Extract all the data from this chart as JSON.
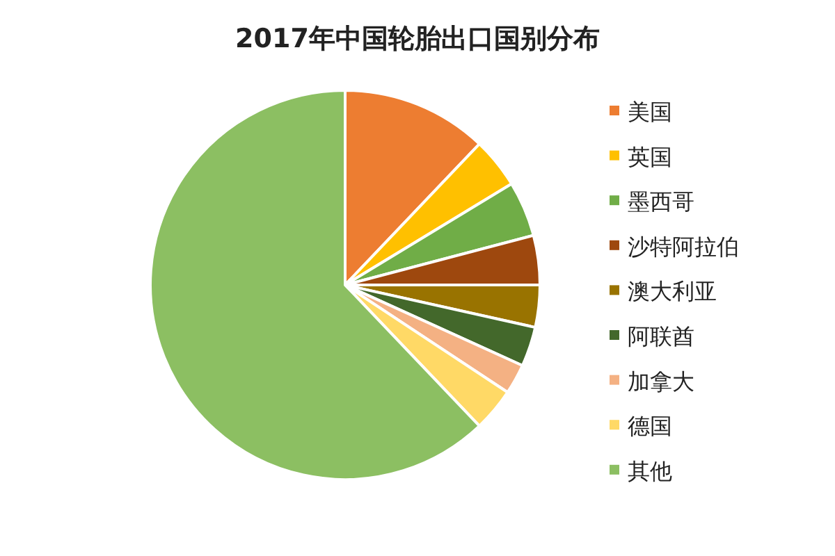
{
  "chart_data": {
    "type": "pie",
    "title": "2017年中国轮胎出口国别分布",
    "categories": [
      "美国",
      "英国",
      "墨西哥",
      "沙特阿拉伯",
      "澳大利亚",
      "阿联酋",
      "加拿大",
      "德国",
      "其他"
    ],
    "values": [
      12.1,
      4.2,
      4.6,
      4.1,
      3.5,
      3.3,
      2.5,
      3.6,
      62.1
    ],
    "colors": [
      "#ed7d31",
      "#ffc000",
      "#70ad47",
      "#9e480e",
      "#997300",
      "#43682b",
      "#f4b183",
      "#ffd966",
      "#8cbf62"
    ],
    "legend": "right"
  }
}
